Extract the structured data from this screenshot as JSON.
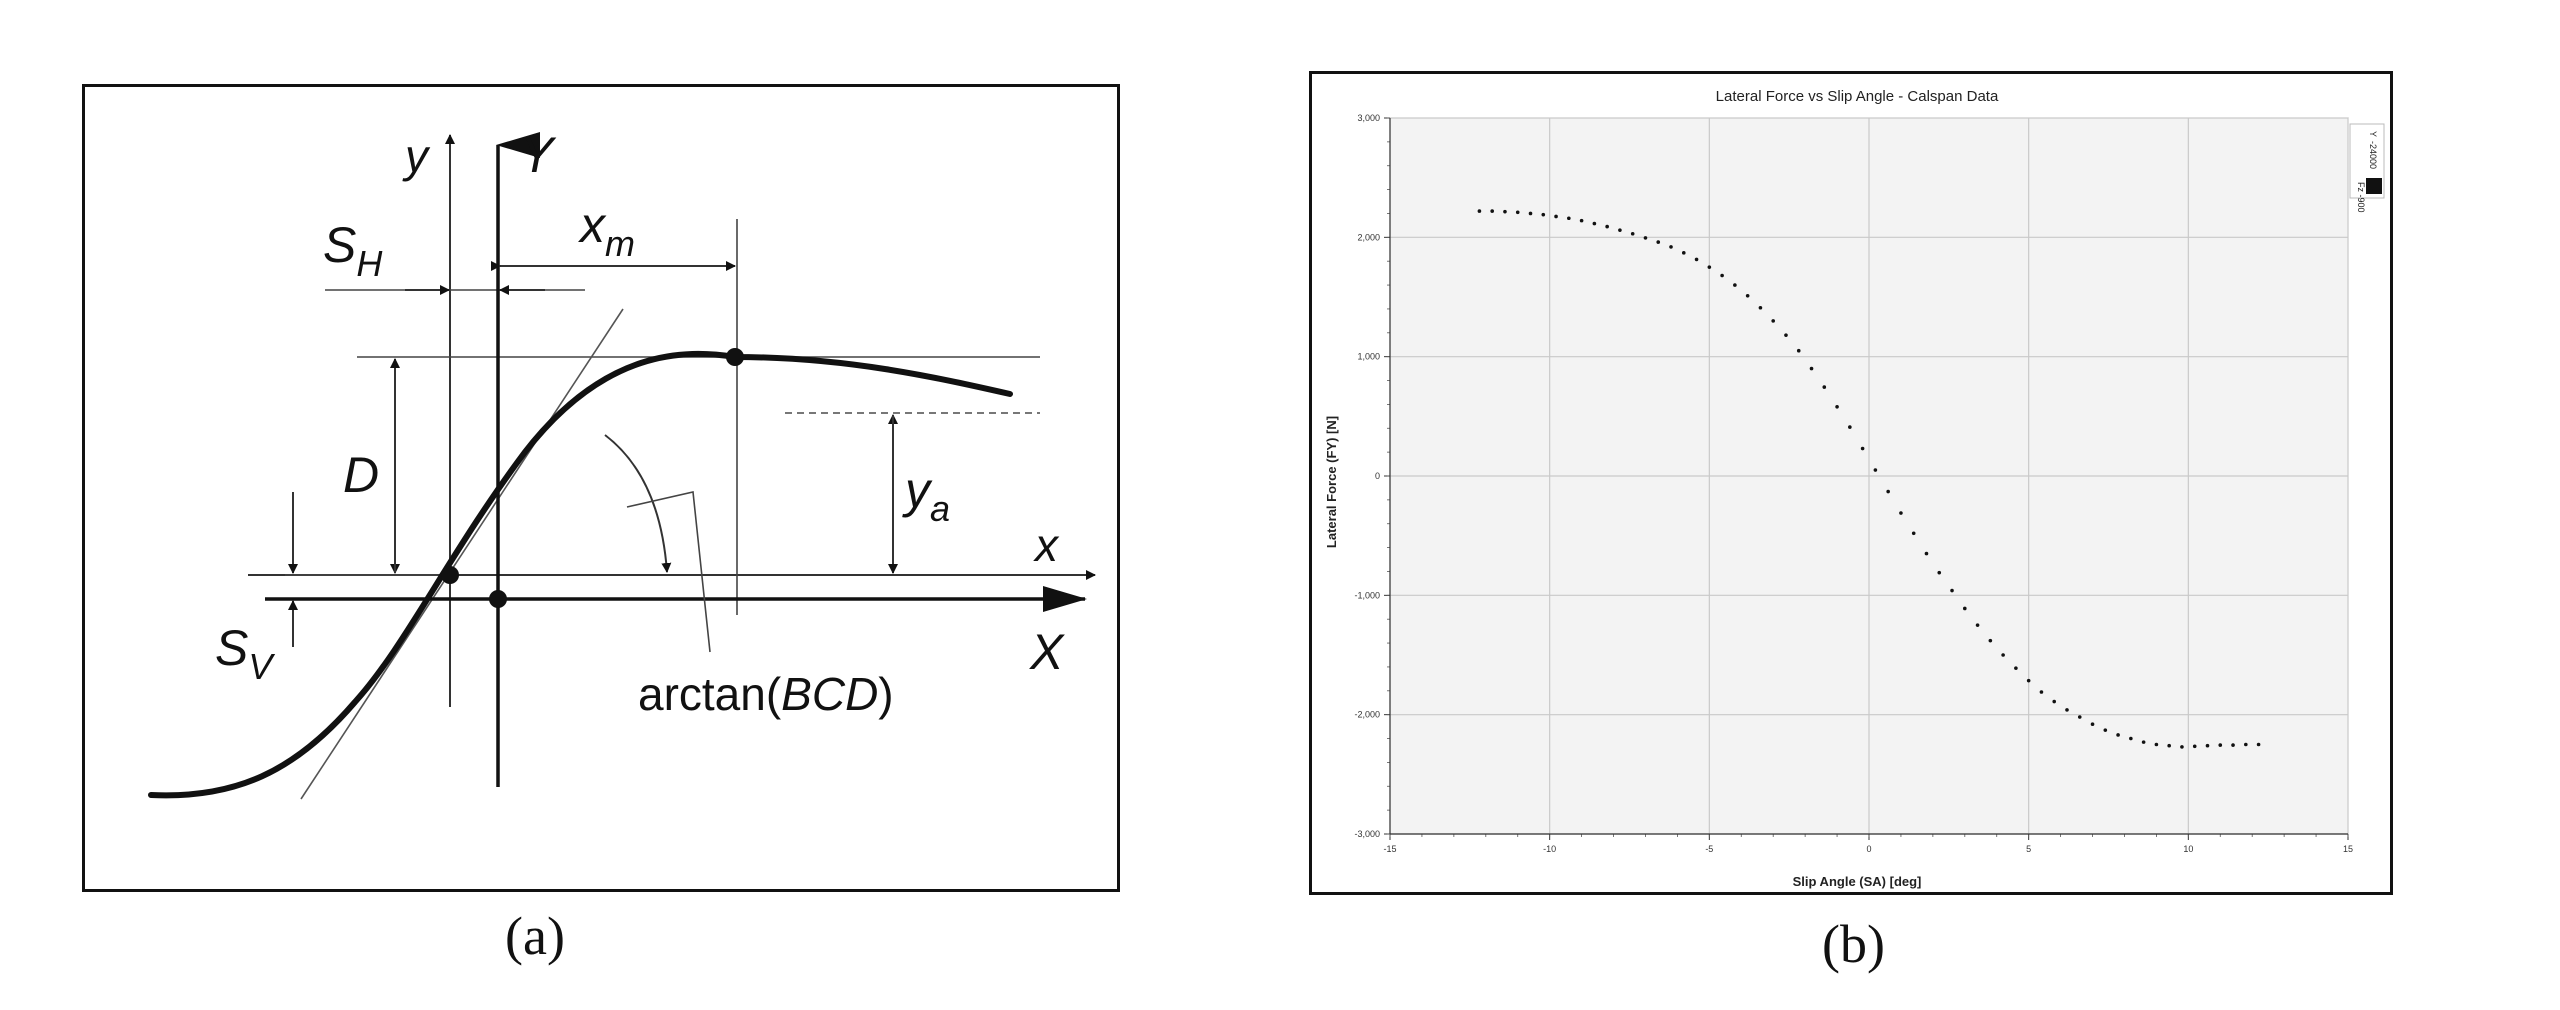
{
  "panel_a": {
    "caption": "(a)",
    "labels": {
      "y_small": "y",
      "Y_big": "Y",
      "x_small": "x",
      "X_big": "X",
      "S": "S",
      "H_sub": "H",
      "V_sub": "V",
      "x_m_base": "x",
      "x_m_sub": "m",
      "y_a_base": "y",
      "y_a_sub": "a",
      "D": "D",
      "arctan_prefix": "arctan(",
      "arctan_italic": "BCD",
      "arctan_suffix": ")"
    }
  },
  "panel_b": {
    "caption": "(b)",
    "legend": {
      "line1": "Y",
      "line2": "-24000",
      "line3": "Fz -900"
    }
  },
  "chart_data": {
    "type": "scatter",
    "title": "Lateral Force vs Slip Angle - Calspan Data",
    "xlabel": "Slip Angle (SA) [deg]",
    "ylabel": "Lateral Force (FY) [N]",
    "xlim": [
      -15,
      15
    ],
    "ylim": [
      -3000,
      3000
    ],
    "xticks": [
      -15,
      -10,
      -5,
      0,
      5,
      10,
      15
    ],
    "xtick_labels": [
      "-15",
      "-10",
      "-5",
      "0",
      "5",
      "10",
      "15"
    ],
    "yticks": [
      3000,
      2000,
      1000,
      0,
      -1000,
      -2000,
      -3000
    ],
    "ytick_labels": [
      "3,000",
      "2,000",
      "1,000",
      "0",
      "-1,000",
      "-2,000",
      "-3,000"
    ],
    "grid": true,
    "legend_position": "top-right",
    "series": [
      {
        "color": "#111111",
        "x": [
          -12.2,
          -11.8,
          -11.4,
          -11.0,
          -10.6,
          -10.2,
          -9.8,
          -9.4,
          -9.0,
          -8.6,
          -8.2,
          -7.8,
          -7.4,
          -7.0,
          -6.6,
          -6.2,
          -5.8,
          -5.4,
          -5.0,
          -4.6,
          -4.2,
          -3.8,
          -3.4,
          -3.0,
          -2.6,
          -2.2,
          -1.8,
          -1.4,
          -1.0,
          -0.6,
          -0.2,
          0.2,
          0.6,
          1.0,
          1.4,
          1.8,
          2.2,
          2.6,
          3.0,
          3.4,
          3.8,
          4.2,
          4.6,
          5.0,
          5.4,
          5.8,
          6.2,
          6.6,
          7.0,
          7.4,
          7.8,
          8.2,
          8.6,
          9.0,
          9.4,
          9.8,
          10.2,
          10.6,
          11.0,
          11.4,
          11.8,
          12.2
        ],
        "y": [
          2220,
          2220,
          2215,
          2210,
          2200,
          2190,
          2175,
          2160,
          2140,
          2115,
          2090,
          2060,
          2030,
          1995,
          1960,
          1920,
          1870,
          1815,
          1750,
          1680,
          1600,
          1510,
          1410,
          1300,
          1180,
          1050,
          900,
          745,
          580,
          410,
          230,
          50,
          -130,
          -310,
          -480,
          -650,
          -810,
          -960,
          -1110,
          -1250,
          -1380,
          -1500,
          -1610,
          -1715,
          -1810,
          -1890,
          -1960,
          -2020,
          -2080,
          -2130,
          -2170,
          -2200,
          -2230,
          -2250,
          -2260,
          -2270,
          -2265,
          -2260,
          -2255,
          -2255,
          -2250,
          -2250
        ]
      }
    ]
  }
}
